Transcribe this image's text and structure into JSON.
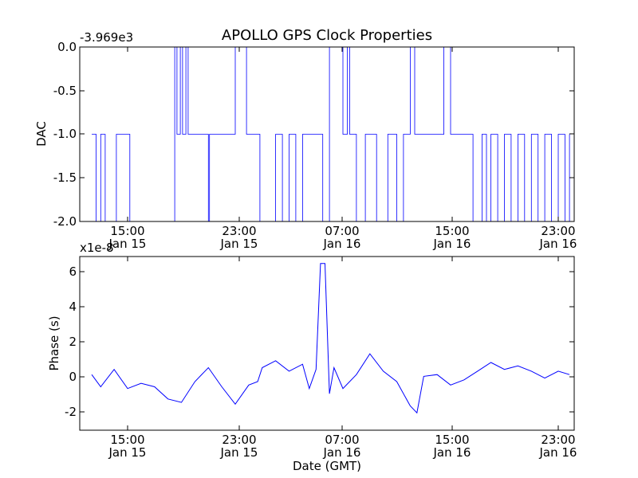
{
  "chart_data": [
    {
      "type": "line",
      "title": "APOLLO GPS Clock Properties",
      "ylabel": "DAC",
      "xlabel": "",
      "offset_label": "-3.969e3",
      "ylim": [
        -2.0,
        0.0
      ],
      "yticks": [
        "0.0",
        "-0.5",
        "-1.0",
        "-1.5",
        "-2.0"
      ],
      "xlim_hours": [
        12.3,
        24.0
      ],
      "xtick_labels": [
        {
          "time": "15:00",
          "date": "Jan 15"
        },
        {
          "time": "23:00",
          "date": "Jan 15"
        },
        {
          "time": "07:00",
          "date": "Jan 16"
        },
        {
          "time": "15:00",
          "date": "Jan 16"
        },
        {
          "time": "23:00",
          "date": "Jan 16"
        }
      ],
      "color": "#0000ff",
      "series": [
        {
          "x": [
            "Jan 15 12:20",
            "Jan 15 12:40",
            "Jan 15 13:00",
            "Jan 15 13:20",
            "Jan 15 14:10",
            "Jan 15 15:10",
            "Jan 15 18:30",
            "Jan 15 18:40",
            "Jan 15 18:55",
            "Jan 15 19:05",
            "Jan 15 19:20",
            "Jan 15 19:30",
            "Jan 15 21:00",
            "Jan 15 21:05",
            "Jan 15 23:00",
            "Jan 15 23:50",
            "Jan 16 00:50",
            "Jan 16 02:00",
            "Jan 16 02:30",
            "Jan 16 03:00",
            "Jan 16 03:30",
            "Jan 16 04:00",
            "Jan 16 05:30",
            "Jan 16 06:00",
            "Jan 16 07:00",
            "Jan 16 07:20",
            "Jan 16 07:30",
            "Jan 16 08:00",
            "Jan 16 08:40",
            "Jan 16 09:30",
            "Jan 16 10:20",
            "Jan 16 11:00",
            "Jan 16 11:30",
            "Jan 16 12:00",
            "Jan 16 12:20",
            "Jan 16 14:30",
            "Jan 16 15:00",
            "Jan 16 16:40",
            "Jan 16 17:20",
            "Jan 16 17:40",
            "Jan 16 18:00",
            "Jan 16 18:30",
            "Jan 16 19:00",
            "Jan 16 19:30",
            "Jan 16 20:00",
            "Jan 16 20:30",
            "Jan 16 21:00",
            "Jan 16 21:30",
            "Jan 16 22:00",
            "Jan 16 22:30",
            "Jan 16 23:00",
            "Jan 16 23:30",
            "Jan 16 23:50"
          ],
          "y": [
            -1,
            -2,
            -1,
            -2,
            -1,
            -2,
            0,
            -1,
            0,
            -1,
            0,
            -1,
            -2,
            -1,
            0,
            -1,
            -2,
            -1,
            -2,
            -1,
            -2,
            -1,
            -2,
            0,
            -1,
            0,
            -1,
            -2,
            -1,
            -2,
            -1,
            -2,
            -1,
            0,
            -1,
            0,
            -1,
            -2,
            -1,
            -2,
            -1,
            -2,
            -1,
            -2,
            -1,
            -2,
            -1,
            -2,
            -1,
            -2,
            -1,
            -2,
            -1
          ]
        }
      ]
    },
    {
      "type": "line",
      "title": "",
      "ylabel": "Phase (s)",
      "xlabel": "Date (GMT)",
      "offset_label": "x1e-8",
      "ylim": [
        -3,
        7
      ],
      "yticks": [
        "6",
        "4",
        "2",
        "0",
        "-2"
      ],
      "xlim_hours": [
        12.3,
        24.0
      ],
      "xtick_labels": [
        {
          "time": "15:00",
          "date": "Jan 15"
        },
        {
          "time": "23:00",
          "date": "Jan 15"
        },
        {
          "time": "07:00",
          "date": "Jan 16"
        },
        {
          "time": "15:00",
          "date": "Jan 16"
        },
        {
          "time": "23:00",
          "date": "Jan 16"
        }
      ],
      "color": "#0000ff",
      "series": [
        {
          "x": [
            "Jan 15 12:20",
            "Jan 15 13:00",
            "Jan 15 14:00",
            "Jan 15 15:00",
            "Jan 15 16:00",
            "Jan 15 17:00",
            "Jan 15 18:00",
            "Jan 15 19:00",
            "Jan 15 20:00",
            "Jan 15 21:00",
            "Jan 15 22:00",
            "Jan 15 23:00",
            "Jan 16 00:00",
            "Jan 16 00:40",
            "Jan 16 01:00",
            "Jan 16 02:00",
            "Jan 16 03:00",
            "Jan 16 04:00",
            "Jan 16 04:30",
            "Jan 16 05:00",
            "Jan 16 05:20",
            "Jan 16 05:40",
            "Jan 16 06:00",
            "Jan 16 06:20",
            "Jan 16 07:00",
            "Jan 16 08:00",
            "Jan 16 09:00",
            "Jan 16 10:00",
            "Jan 16 11:00",
            "Jan 16 12:00",
            "Jan 16 12:30",
            "Jan 16 13:00",
            "Jan 16 14:00",
            "Jan 16 15:00",
            "Jan 16 16:00",
            "Jan 16 17:00",
            "Jan 16 18:00",
            "Jan 16 19:00",
            "Jan 16 20:00",
            "Jan 16 21:00",
            "Jan 16 22:00",
            "Jan 16 23:00",
            "Jan 16 23:50"
          ],
          "y": [
            0.2,
            -0.5,
            0.5,
            -0.6,
            -0.3,
            -0.5,
            -1.2,
            -1.4,
            -0.2,
            0.6,
            -0.5,
            -1.5,
            -0.4,
            -0.2,
            0.6,
            1.0,
            0.4,
            0.8,
            -0.6,
            0.5,
            6.6,
            6.6,
            -0.9,
            0.6,
            -0.6,
            0.2,
            1.4,
            0.4,
            -0.2,
            -1.6,
            -2.0,
            0.1,
            0.2,
            -0.4,
            -0.1,
            0.4,
            0.9,
            0.5,
            0.7,
            0.4,
            0.0,
            0.4,
            0.2
          ]
        }
      ]
    }
  ]
}
